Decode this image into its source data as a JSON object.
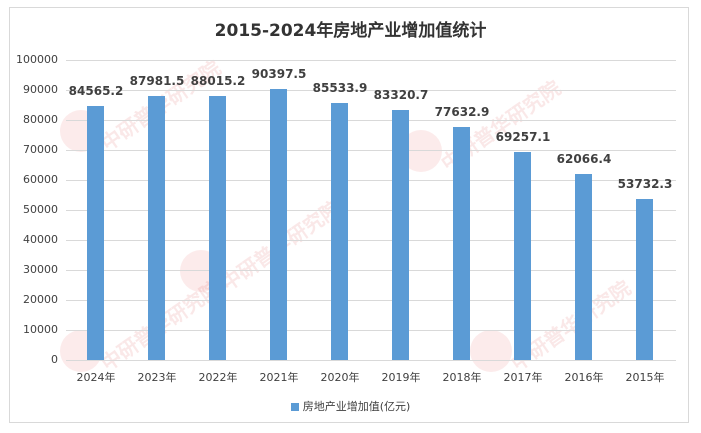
{
  "chart_data": {
    "type": "bar",
    "title": "2015-2024年房地产业增加值统计",
    "categories": [
      "2024年",
      "2023年",
      "2022年",
      "2021年",
      "2020年",
      "2019年",
      "2018年",
      "2017年",
      "2016年",
      "2015年"
    ],
    "series": [
      {
        "name": "房地产业增加值(亿元)",
        "values": [
          84565.2,
          87981.5,
          88015.2,
          90397.5,
          85533.9,
          83320.7,
          77632.9,
          69257.1,
          62066.4,
          53732.3
        ],
        "color": "#5b9bd5"
      }
    ],
    "value_labels": [
      "84565.2",
      "87981.5",
      "88015.2",
      "90397.5",
      "85533.9",
      "83320.7",
      "77632.9",
      "69257.1",
      "62066.4",
      "53732.3"
    ],
    "xlabel": "",
    "ylabel": "",
    "ylim": [
      0,
      100000
    ],
    "yticks": [
      "0",
      "10000",
      "20000",
      "30000",
      "40000",
      "50000",
      "60000",
      "70000",
      "80000",
      "90000",
      "100000"
    ],
    "grid": true,
    "legend_position": "bottom"
  },
  "watermark": {
    "text": "www.chinaIRN.com 中研普华研究院",
    "logo": "CIRN"
  }
}
